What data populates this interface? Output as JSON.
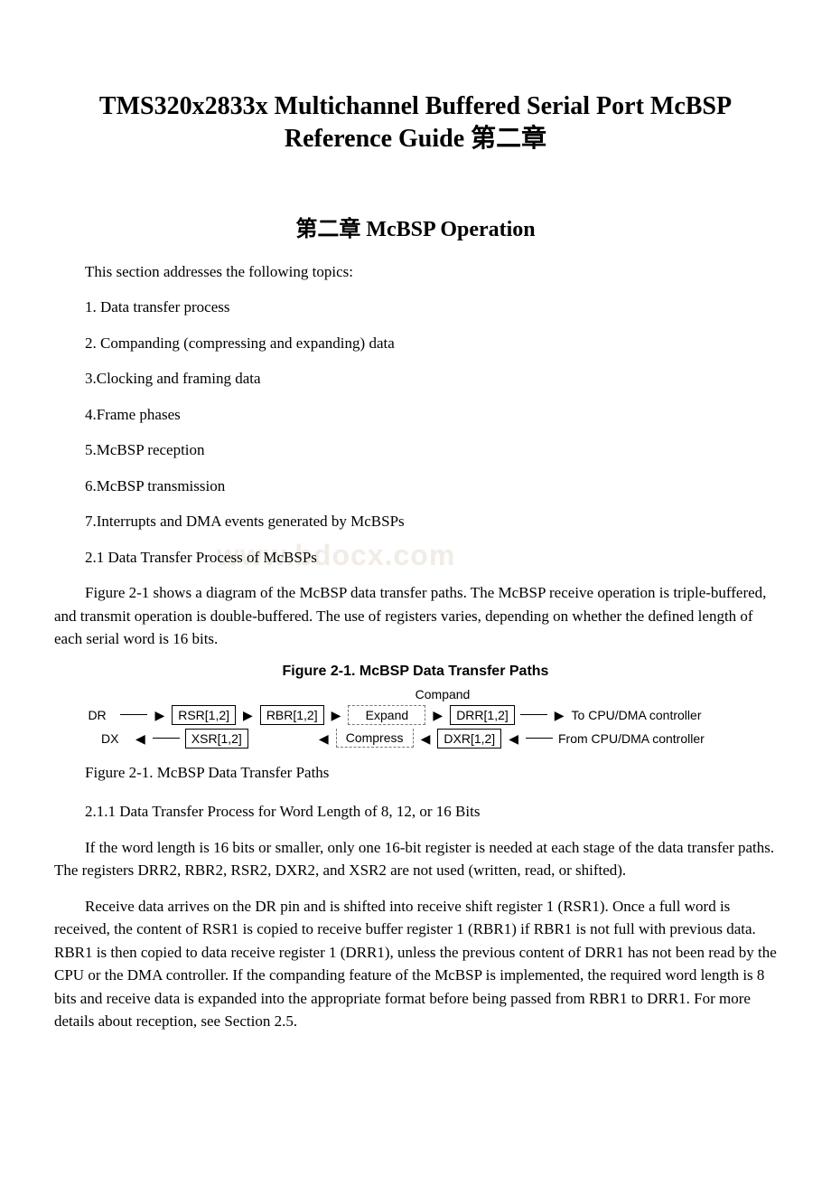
{
  "title_line1": "TMS320x2833x Multichannel Buffered Serial Port McBSP",
  "title_line2": "Reference Guide 第二章",
  "section_heading": "第二章 McBSP Operation",
  "intro": "This section addresses the following topics:",
  "topics": [
    "1. Data transfer process",
    "2. Companding (compressing and expanding) data",
    "3.Clocking and framing data",
    "4.Frame phases",
    "5.McBSP reception",
    "6.McBSP transmission",
    "7.Interrupts and DMA events generated by McBSPs"
  ],
  "sub_2_1": "2.1 Data Transfer Process of McBSPs",
  "watermark": "www.bdocx.com",
  "para_2_1": "Figure 2-1 shows a diagram of the McBSP data transfer paths. The McBSP receive operation is triple-buffered, and transmit operation is double-buffered. The use of registers varies, depending on whether the defined length of each serial word is 16 bits.",
  "figure": {
    "title": "Figure 2-1.  McBSP Data Transfer Paths",
    "compand_label": "Compand",
    "row1": {
      "left_label": "DR",
      "box_rsr": "RSR[1,2]",
      "box_rbr": "RBR[1,2]",
      "mid": "Expand",
      "box_drr": "DRR[1,2]",
      "right_label": "To CPU/DMA controller"
    },
    "row2": {
      "left_label": "DX",
      "box_xsr": "XSR[1,2]",
      "mid": "Compress",
      "box_dxr": "DXR[1,2]",
      "right_label": "From CPU/DMA controller"
    },
    "caption_below": "Figure 2-1. McBSP Data Transfer Paths"
  },
  "sub_2_1_1": "2.1.1 Data Transfer Process for Word Length of 8, 12, or 16 Bits",
  "para_2_1_1a": "If the word length is 16 bits or smaller, only one 16-bit register is needed at each stage of the data transfer paths. The registers DRR2, RBR2, RSR2, DXR2, and XSR2 are not used (written, read, or shifted).",
  "para_2_1_1b": "Receive data arrives on the DR pin and is shifted into receive shift register 1 (RSR1). Once a full word is received, the content of RSR1 is copied to receive buffer register 1 (RBR1) if RBR1 is not full with previous data. RBR1 is then copied to data receive register 1 (DRR1), unless the previous content of DRR1 has not been read by the CPU or the DMA controller. If the companding feature of the McBSP is implemented, the required word length is 8 bits and receive data is expanded into the appropriate format before being passed from RBR1 to DRR1. For more details about reception, see Section 2.5."
}
